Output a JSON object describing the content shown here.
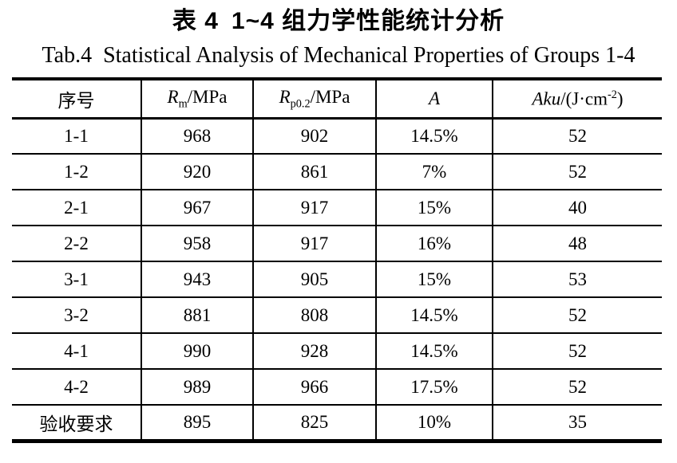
{
  "page": {
    "background_color": "#ffffff",
    "text_color": "#000000"
  },
  "title": {
    "zh_prefix": "表 4",
    "zh_main": "1~4 组力学性能统计分析"
  },
  "subtitle": {
    "prefix": "Tab.4",
    "main": "Statistical Analysis of Mechanical Properties of Groups 1-4"
  },
  "table": {
    "columns": [
      {
        "label": "序号"
      },
      {
        "base": "R",
        "sub": "m",
        "rest": "/MPa"
      },
      {
        "base": "R",
        "sub": "p0.2",
        "rest": "/MPa"
      },
      {
        "label": "A"
      },
      {
        "base": "Aku",
        "rest": "/(J·cm",
        "sup": "-2",
        "tail": ")"
      }
    ],
    "rows": [
      {
        "cells": [
          "1-1",
          "968",
          "902",
          "14.5%",
          "52"
        ]
      },
      {
        "cells": [
          "1-2",
          "920",
          "861",
          "7%",
          "52"
        ]
      },
      {
        "cells": [
          "2-1",
          "967",
          "917",
          "15%",
          "40"
        ]
      },
      {
        "cells": [
          "2-2",
          "958",
          "917",
          "16%",
          "48"
        ]
      },
      {
        "cells": [
          "3-1",
          "943",
          "905",
          "15%",
          "53"
        ]
      },
      {
        "cells": [
          "3-2",
          "881",
          "808",
          "14.5%",
          "52"
        ]
      },
      {
        "cells": [
          "4-1",
          "990",
          "928",
          "14.5%",
          "52"
        ]
      },
      {
        "cells": [
          "4-2",
          "989",
          "966",
          "17.5%",
          "52"
        ]
      },
      {
        "cells": [
          "验收要求",
          "895",
          "825",
          "10%",
          "35"
        ]
      }
    ]
  }
}
